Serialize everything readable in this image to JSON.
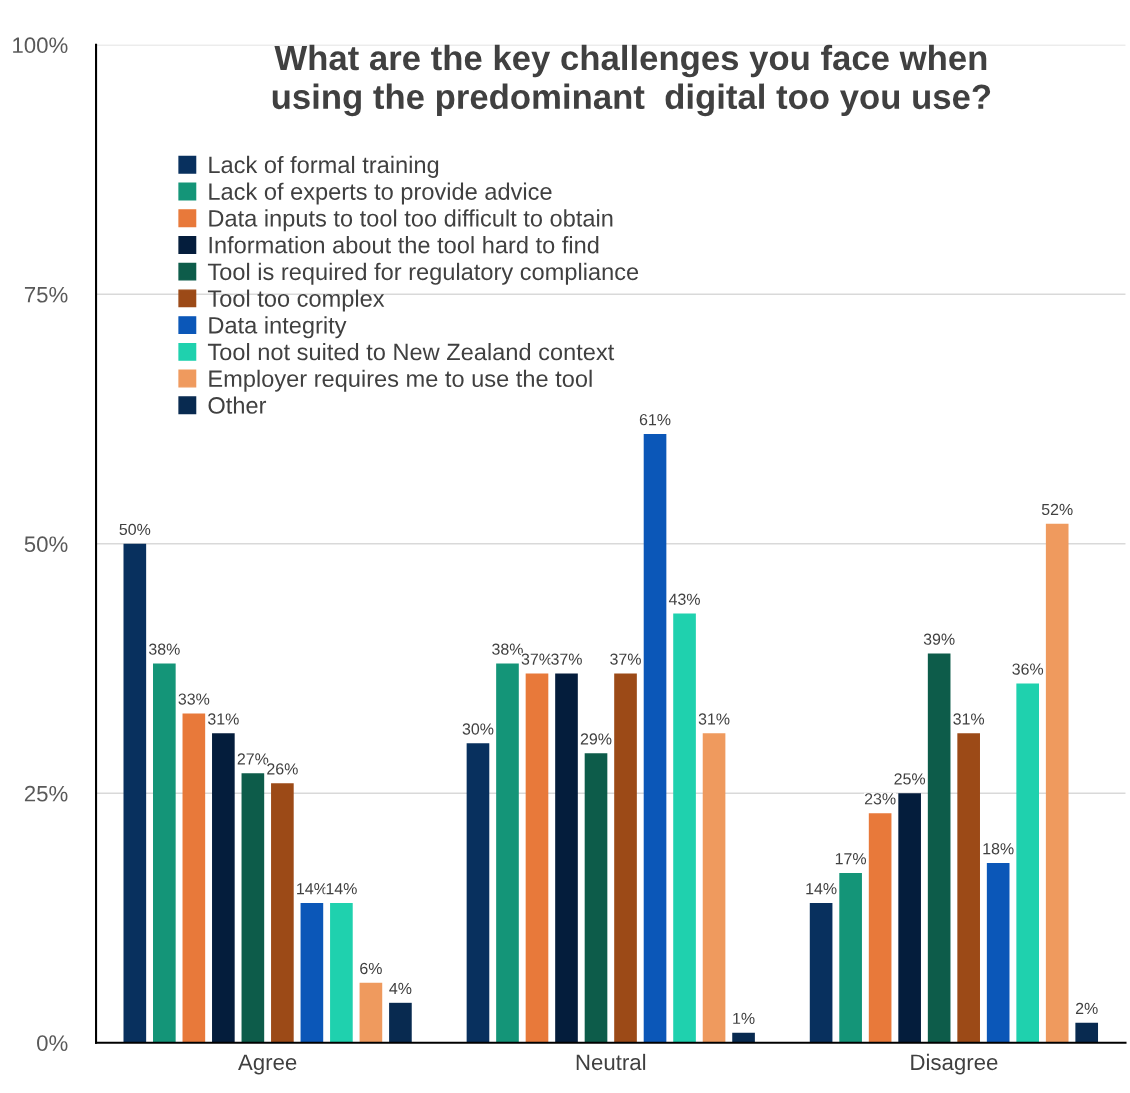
{
  "chart_data": {
    "type": "bar",
    "title": "What are the key challenges you face when\nusing the predominant  digital too you use?",
    "categories": [
      "Agree",
      "Neutral",
      "Disagree"
    ],
    "series": [
      {
        "name": "Lack of formal training",
        "color": "#08305e",
        "values": [
          50,
          30,
          14
        ],
        "value_labels": [
          "50%",
          "30%",
          "14%"
        ]
      },
      {
        "name": "Lack of experts to provide advice",
        "color": "#149578",
        "values": [
          38,
          38,
          17
        ],
        "value_labels": [
          "38%",
          "38%",
          "17%"
        ]
      },
      {
        "name": "Data inputs to tool too difficult to obtain",
        "color": "#e8793a",
        "values": [
          33,
          37,
          23
        ],
        "value_labels": [
          "33%",
          "37%",
          "23%"
        ]
      },
      {
        "name": "Information about the tool hard to find",
        "color": "#041d3c",
        "values": [
          31,
          37,
          25
        ],
        "value_labels": [
          "31%",
          "37%",
          "25%"
        ]
      },
      {
        "name": "Tool is required for regulatory compliance",
        "color": "#0d5c4a",
        "values": [
          27,
          29,
          39
        ],
        "value_labels": [
          "27%",
          "29%",
          "39%"
        ]
      },
      {
        "name": "Tool too complex",
        "color": "#9c4a17",
        "values": [
          26,
          37,
          31
        ],
        "value_labels": [
          "26%",
          "37%",
          "31%"
        ]
      },
      {
        "name": "Data integrity",
        "color": "#0b57b8",
        "values": [
          14,
          61,
          18
        ],
        "value_labels": [
          "14%",
          "61%",
          "18%"
        ]
      },
      {
        "name": "Tool not suited to New Zealand context",
        "color": "#1fd1ae",
        "values": [
          14,
          43,
          36
        ],
        "value_labels": [
          "14%",
          "43%",
          "36%"
        ]
      },
      {
        "name": "Employer requires me to use the tool",
        "color": "#ef9a5e",
        "values": [
          6,
          31,
          52
        ],
        "value_labels": [
          "6%",
          "31%",
          "52%"
        ]
      },
      {
        "name": "Other",
        "color": "#082a50",
        "values": [
          4,
          1,
          2
        ],
        "value_labels": [
          "4%",
          "1%",
          "2%"
        ]
      }
    ],
    "ylim": [
      0,
      100
    ],
    "yticks": [
      {
        "value": 0,
        "label": "0%"
      },
      {
        "value": 25,
        "label": "25%"
      },
      {
        "value": 50,
        "label": "50%"
      },
      {
        "value": 75,
        "label": "75%"
      },
      {
        "value": 100,
        "label": "100%"
      }
    ],
    "grid": "y",
    "legend": "top left"
  }
}
